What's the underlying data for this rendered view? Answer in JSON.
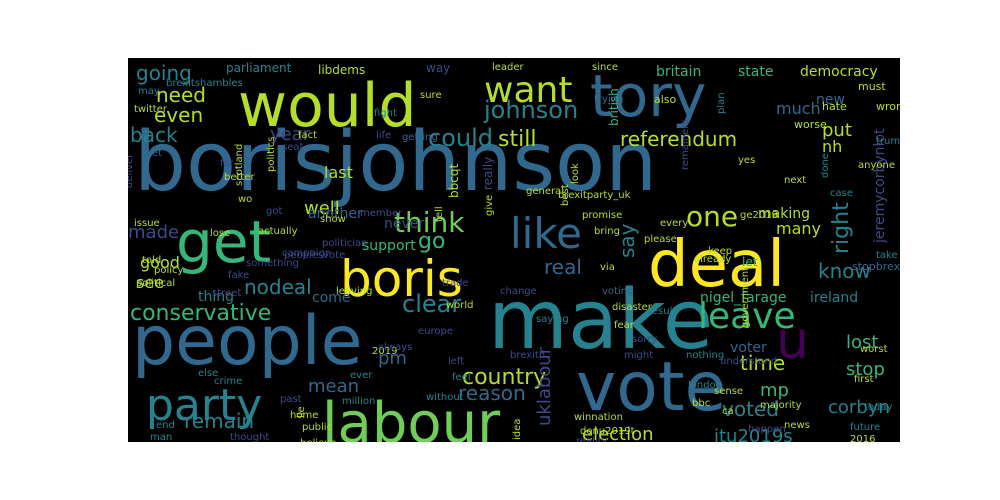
{
  "wordcloud": {
    "background": "#000000",
    "palette": [
      "#440154",
      "#482878",
      "#3e4989",
      "#31688e",
      "#26828e",
      "#1f9e89",
      "#35b779",
      "#6ece58",
      "#b5de2b",
      "#fde725"
    ],
    "words": [
      {
        "text": "borisjohnson",
        "color": "#31688e"
      },
      {
        "text": "people",
        "color": "#31688e"
      },
      {
        "text": "make",
        "color": "#26828e"
      },
      {
        "text": "vote",
        "color": "#31688e"
      },
      {
        "text": "would",
        "color": "#b5de2b"
      },
      {
        "text": "tory",
        "color": "#31688e"
      },
      {
        "text": "deal",
        "color": "#fde725"
      },
      {
        "text": "boris",
        "color": "#fde725"
      },
      {
        "text": "labour",
        "color": "#6ece58"
      },
      {
        "text": "get",
        "color": "#35b779"
      },
      {
        "text": "like",
        "color": "#31688e"
      },
      {
        "text": "want",
        "color": "#b5de2b"
      },
      {
        "text": "party",
        "color": "#26828e"
      },
      {
        "text": "leave",
        "color": "#35b779"
      },
      {
        "text": "u",
        "color": "#440154"
      },
      {
        "text": "conservative",
        "color": "#35b779"
      },
      {
        "text": "one",
        "color": "#b5de2b"
      },
      {
        "text": "johnson",
        "color": "#26828e"
      },
      {
        "text": "country",
        "color": "#b5de2b"
      },
      {
        "text": "think",
        "color": "#6ece58"
      },
      {
        "text": "going",
        "color": "#26828e"
      },
      {
        "text": "need",
        "color": "#b5de2b"
      },
      {
        "text": "even",
        "color": "#b5de2b"
      },
      {
        "text": "could",
        "color": "#26828e"
      },
      {
        "text": "still",
        "color": "#b5de2b"
      },
      {
        "text": "referendum",
        "color": "#b5de2b"
      },
      {
        "text": "back",
        "color": "#26828e"
      },
      {
        "text": "year",
        "color": "#3e4989"
      },
      {
        "text": "put",
        "color": "#b5de2b"
      },
      {
        "text": "made",
        "color": "#3e4989"
      },
      {
        "text": "nodeal",
        "color": "#26828e"
      },
      {
        "text": "clear",
        "color": "#26828e"
      },
      {
        "text": "real",
        "color": "#31688e"
      },
      {
        "text": "know",
        "color": "#26828e"
      },
      {
        "text": "right",
        "color": "#26828e"
      },
      {
        "text": "time",
        "color": "#b5de2b"
      },
      {
        "text": "remain",
        "color": "#26828e"
      },
      {
        "text": "reason",
        "color": "#31688e"
      },
      {
        "text": "voted",
        "color": "#26828e"
      },
      {
        "text": "election",
        "color": "#b5de2b"
      },
      {
        "text": "itu2019s",
        "color": "#26828e"
      },
      {
        "text": "mp",
        "color": "#35b779"
      },
      {
        "text": "stop",
        "color": "#35b779"
      },
      {
        "text": "corbyn",
        "color": "#26828e"
      },
      {
        "text": "lost",
        "color": "#35b779"
      },
      {
        "text": "go",
        "color": "#35b779"
      },
      {
        "text": "say",
        "color": "#26828e"
      },
      {
        "text": "uklabour",
        "color": "#3e4989"
      },
      {
        "text": "pm",
        "color": "#31688e"
      },
      {
        "text": "mean",
        "color": "#31688e"
      },
      {
        "text": "well",
        "color": "#b5de2b"
      },
      {
        "text": "last",
        "color": "#b5de2b"
      },
      {
        "text": "see",
        "color": "#b5de2b"
      },
      {
        "text": "good",
        "color": "#b5de2b"
      },
      {
        "text": "britain",
        "color": "#35b779"
      },
      {
        "text": "state",
        "color": "#35b779"
      },
      {
        "text": "democracy",
        "color": "#b5de2b"
      },
      {
        "text": "new",
        "color": "#31688e"
      },
      {
        "text": "much",
        "color": "#31688e"
      },
      {
        "text": "nh",
        "color": "#b5de2b"
      },
      {
        "text": "many",
        "color": "#b5de2b"
      },
      {
        "text": "making",
        "color": "#b5de2b"
      },
      {
        "text": "jeremycorbynlot",
        "color": "#3e4989"
      },
      {
        "text": "voter",
        "color": "#31688e"
      },
      {
        "text": "another",
        "color": "#31688e"
      },
      {
        "text": "never",
        "color": "#3e4989"
      },
      {
        "text": "support",
        "color": "#35b779"
      },
      {
        "text": "come",
        "color": "#31688e"
      },
      {
        "text": "thing",
        "color": "#26828e"
      },
      {
        "text": "ireland",
        "color": "#26828e"
      },
      {
        "text": "nigel_farage",
        "color": "#35b779"
      },
      {
        "text": "parliament",
        "color": "#26828e"
      },
      {
        "text": "libdems",
        "color": "#b5de2b"
      },
      {
        "text": "way",
        "color": "#3e4989"
      },
      {
        "text": "british",
        "color": "#35b779"
      },
      {
        "text": "really",
        "color": "#3e4989"
      },
      {
        "text": "bbcqt",
        "color": "#b5de2b"
      },
      {
        "text": "let",
        "color": "#35b779"
      },
      {
        "text": "must",
        "color": "#b5de2b"
      },
      {
        "text": "also",
        "color": "#b5de2b"
      },
      {
        "text": "hate",
        "color": "#b5de2b"
      },
      {
        "text": "wrong",
        "color": "#b5de2b"
      },
      {
        "text": "worse",
        "color": "#b5de2b"
      },
      {
        "text": "trump",
        "color": "#26828e"
      },
      {
        "text": "done",
        "color": "#26828e"
      },
      {
        "text": "anyone",
        "color": "#b5de2b"
      },
      {
        "text": "yes",
        "color": "#b5de2b"
      },
      {
        "text": "next",
        "color": "#b5de2b"
      },
      {
        "text": "case",
        "color": "#26828e"
      },
      {
        "text": "ge2019",
        "color": "#b5de2b"
      },
      {
        "text": "take",
        "color": "#26828e"
      },
      {
        "text": "stopbrexit",
        "color": "#31688e"
      },
      {
        "text": "every",
        "color": "#b5de2b"
      },
      {
        "text": "please",
        "color": "#b5de2b"
      },
      {
        "text": "bring",
        "color": "#b5de2b"
      },
      {
        "text": "promise",
        "color": "#b5de2b"
      },
      {
        "text": "best",
        "color": "#b5de2b"
      },
      {
        "text": "general",
        "color": "#b5de2b"
      },
      {
        "text": "give",
        "color": "#b5de2b"
      },
      {
        "text": "tell",
        "color": "#b5de2b"
      },
      {
        "text": "politician",
        "color": "#3e4989"
      },
      {
        "text": "issue",
        "color": "#b5de2b"
      },
      {
        "text": "told",
        "color": "#b5de2b"
      },
      {
        "text": "policy",
        "color": "#b5de2b"
      },
      {
        "text": "political",
        "color": "#b5de2b"
      },
      {
        "text": "street",
        "color": "#3e4989"
      },
      {
        "text": "voting",
        "color": "#31688e"
      },
      {
        "text": "disaster",
        "color": "#b5de2b"
      },
      {
        "text": "fear",
        "color": "#b5de2b"
      },
      {
        "text": "result",
        "color": "#26828e"
      },
      {
        "text": "government",
        "color": "#b5de2b"
      },
      {
        "text": "trade",
        "color": "#3e4989"
      },
      {
        "text": "change",
        "color": "#3e4989"
      },
      {
        "text": "saying",
        "color": "#26828e"
      },
      {
        "text": "world",
        "color": "#b5de2b"
      },
      {
        "text": "europe",
        "color": "#3e4989"
      },
      {
        "text": "2019",
        "color": "#b5de2b"
      },
      {
        "text": "without",
        "color": "#26828e"
      },
      {
        "text": "feel",
        "color": "#26828e"
      },
      {
        "text": "sorry",
        "color": "#3e4989"
      },
      {
        "text": "might",
        "color": "#3e4989"
      },
      {
        "text": "nothing",
        "color": "#26828e"
      },
      {
        "text": "majority",
        "color": "#b5de2b"
      },
      {
        "text": "first",
        "color": "#b5de2b"
      },
      {
        "text": "worst",
        "color": "#b5de2b"
      },
      {
        "text": "million",
        "color": "#26828e"
      },
      {
        "text": "ever",
        "color": "#26828e"
      },
      {
        "text": "lie",
        "color": "#b5de2b"
      },
      {
        "text": "believe",
        "color": "#b5de2b"
      },
      {
        "text": "public",
        "color": "#b5de2b"
      },
      {
        "text": "home",
        "color": "#b5de2b"
      },
      {
        "text": "end",
        "color": "#26828e"
      },
      {
        "text": "man",
        "color": "#26828e"
      },
      {
        "text": "thought",
        "color": "#3e4989"
      },
      {
        "text": "idea",
        "color": "#b5de2b"
      },
      {
        "text": "winnation",
        "color": "#b5de2b"
      },
      {
        "text": "donu2019t",
        "color": "#b5de2b"
      },
      {
        "text": "reality",
        "color": "#3e4989"
      },
      {
        "text": "london",
        "color": "#26828e"
      },
      {
        "text": "bbc",
        "color": "#b5de2b"
      },
      {
        "text": "happen",
        "color": "#3e4989"
      },
      {
        "text": "news",
        "color": "#b5de2b"
      },
      {
        "text": "2016",
        "color": "#b5de2b"
      },
      {
        "text": "future",
        "color": "#26828e"
      },
      {
        "text": "today",
        "color": "#26828e"
      },
      {
        "text": "leader",
        "color": "#b5de2b"
      },
      {
        "text": "since",
        "color": "#b5de2b"
      },
      {
        "text": "may",
        "color": "#26828e"
      },
      {
        "text": "brexitshambles",
        "color": "#26828e"
      },
      {
        "text": "twitter",
        "color": "#b5de2b"
      },
      {
        "text": "fight",
        "color": "#26828e"
      },
      {
        "text": "sure",
        "color": "#b5de2b"
      },
      {
        "text": "trying",
        "color": "#31688e"
      },
      {
        "text": "plan",
        "color": "#26828e"
      },
      {
        "text": "yet",
        "color": "#31688e"
      },
      {
        "text": "politics",
        "color": "#b5de2b"
      },
      {
        "text": "getting",
        "color": "#31688e"
      },
      {
        "text": "seat",
        "color": "#3e4989"
      },
      {
        "text": "fact",
        "color": "#b5de2b"
      },
      {
        "text": "far",
        "color": "#3e4989"
      },
      {
        "text": "better",
        "color": "#b5de2b"
      },
      {
        "text": "scotland",
        "color": "#b5de2b"
      },
      {
        "text": "wo",
        "color": "#b5de2b"
      },
      {
        "text": "got",
        "color": "#3e4989"
      },
      {
        "text": "actually",
        "color": "#b5de2b"
      },
      {
        "text": "show",
        "color": "#b5de2b"
      },
      {
        "text": "member",
        "color": "#3e4989"
      },
      {
        "text": "lose",
        "color": "#b5de2b"
      },
      {
        "text": "deliver",
        "color": "#3e4989"
      },
      {
        "text": "look",
        "color": "#b5de2b"
      },
      {
        "text": "brexitparty_uk",
        "color": "#b5de2b"
      },
      {
        "text": "remainers",
        "color": "#3e4989"
      },
      {
        "text": "peoplesvote",
        "color": "#3e4989"
      },
      {
        "text": "leaving",
        "color": "#b5de2b"
      },
      {
        "text": "left",
        "color": "#3e4989"
      },
      {
        "text": "via",
        "color": "#b5de2b"
      },
      {
        "text": "already",
        "color": "#b5de2b"
      },
      {
        "text": "sense",
        "color": "#b5de2b"
      },
      {
        "text": "ca",
        "color": "#b5de2b"
      },
      {
        "text": "keep",
        "color": "#b5de2b"
      },
      {
        "text": "else",
        "color": "#26828e"
      },
      {
        "text": "crime",
        "color": "#26828e"
      },
      {
        "text": "past",
        "color": "#3e4989"
      },
      {
        "text": "something",
        "color": "#3e4989"
      },
      {
        "text": "campaign",
        "color": "#3e4989"
      },
      {
        "text": "life",
        "color": "#3e4989"
      },
      {
        "text": "brexitn",
        "color": "#3e4989"
      },
      {
        "text": "fake",
        "color": "#3e4989"
      },
      {
        "text": "always",
        "color": "#3e4989"
      },
      {
        "text": "understand",
        "color": "#3e4989"
      },
      {
        "text": "care",
        "color": "#26828e"
      },
      {
        "text": "based",
        "color": "#3e4989"
      },
      {
        "text": "3",
        "color": "#3e4989"
      },
      {
        "text": "talk",
        "color": "#3e4989"
      },
      {
        "text": "everyone",
        "color": "#3e4989"
      },
      {
        "text": "work",
        "color": "#440154"
      }
    ]
  }
}
